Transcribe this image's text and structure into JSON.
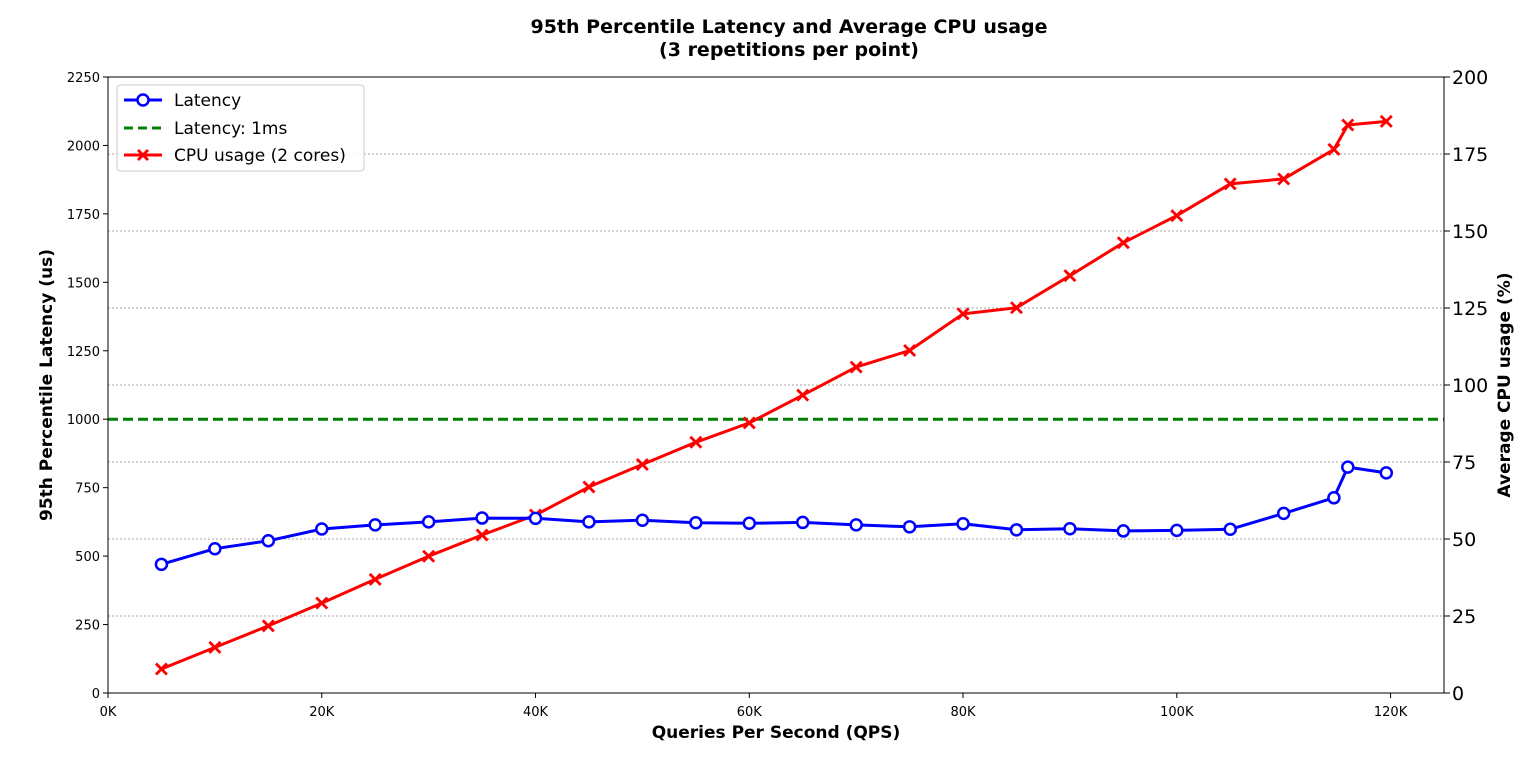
{
  "chart_data": {
    "type": "line",
    "title": "95th Percentile Latency and Average CPU usage",
    "subtitle": "(3 repetitions per point)",
    "xlabel": "Queries Per Second (QPS)",
    "ylabel_left": "95th Percentile Latency (us)",
    "ylabel_right": "Average CPU usage (%)",
    "xlim": [
      0,
      125000
    ],
    "ylim_left": [
      0,
      2250
    ],
    "ylim_right": [
      0,
      200
    ],
    "x_ticks": [
      "0K",
      "20K",
      "40K",
      "60K",
      "80K",
      "100K",
      "120K"
    ],
    "y_left_ticks": [
      "0",
      "250",
      "500",
      "750",
      "1000",
      "1250",
      "1500",
      "1750",
      "2000",
      "2250"
    ],
    "y_right_ticks": [
      "0",
      "25",
      "50",
      "75",
      "100",
      "125",
      "150",
      "175",
      "200"
    ],
    "grid": "horizontal dotted (right axis)",
    "legend_position": "top-left",
    "legend": [
      "Latency",
      "Latency: 1ms",
      "CPU usage (2 cores)"
    ],
    "series": [
      {
        "name": "Latency",
        "axis": "left",
        "color": "#0000ff",
        "marker": "circle",
        "x": [
          5000,
          10000,
          15000,
          20000,
          25000,
          30000,
          35000,
          40000,
          45000,
          50000,
          55000,
          60000,
          65000,
          70000,
          75000,
          80000,
          85000,
          90000,
          95000,
          100000,
          105000,
          110000,
          114700,
          116000,
          119600
        ],
        "y": [
          470,
          527,
          556,
          599,
          614,
          625,
          639,
          638,
          625,
          631,
          622,
          620,
          623,
          614,
          607,
          618,
          596,
          600,
          592,
          594,
          598,
          656,
          713,
          825,
          804
        ]
      },
      {
        "name": "Latency: 1ms",
        "axis": "left",
        "color": "#008000",
        "style": "dashed",
        "y": 1000
      },
      {
        "name": "CPU usage (2 cores)",
        "axis": "right",
        "color": "#ff0000",
        "marker": "x",
        "x": [
          5000,
          10000,
          15000,
          20000,
          25000,
          30000,
          35000,
          40000,
          45000,
          50000,
          55000,
          60000,
          65000,
          70000,
          75000,
          80000,
          85000,
          90000,
          95000,
          100000,
          105000,
          110000,
          114700,
          116000,
          119600
        ],
        "y": [
          7.8,
          14.8,
          21.8,
          29.2,
          36.9,
          44.4,
          51.3,
          57.8,
          66.9,
          74.2,
          81.4,
          87.7,
          96.7,
          105.8,
          111.2,
          123.1,
          125.1,
          135.5,
          146.2,
          155.0,
          165.3,
          166.9,
          176.5,
          184.4,
          185.6
        ]
      }
    ]
  }
}
